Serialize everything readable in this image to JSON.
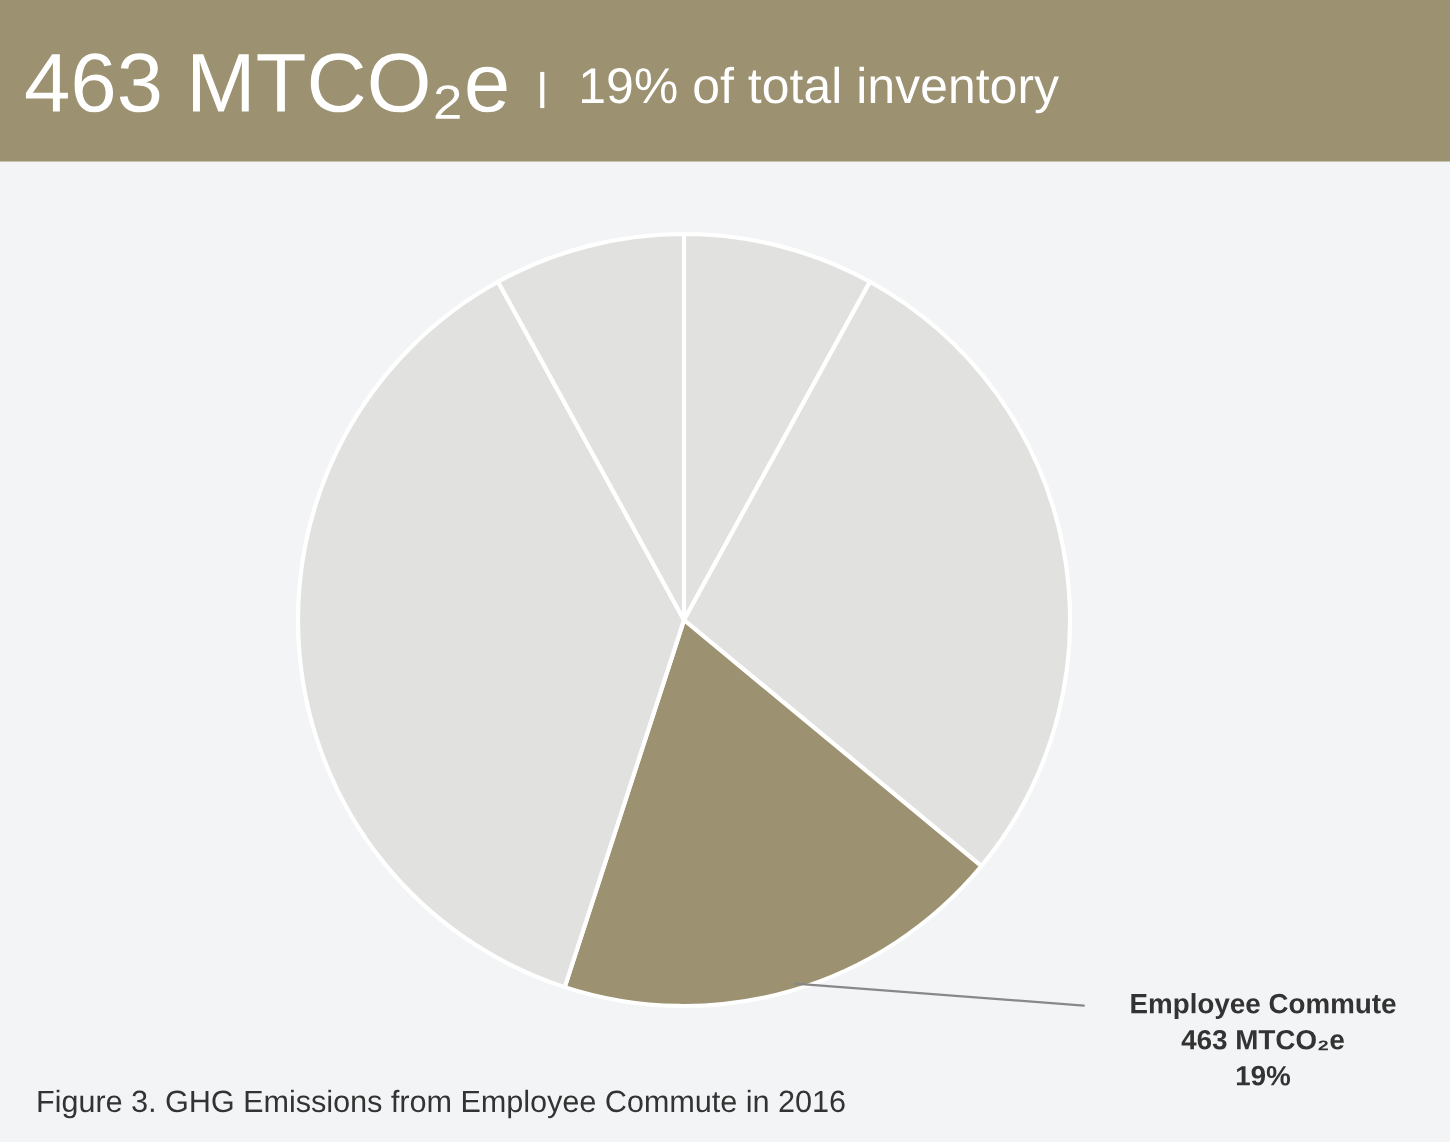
{
  "chart_data": {
    "type": "pie",
    "title": "463 MTCO₂e",
    "subtitle": "19% of total inventory",
    "categories": [
      null,
      null,
      "Employee Commute",
      null,
      null
    ],
    "values": [
      8,
      28,
      19,
      37,
      8
    ],
    "colors": [
      "#e1e1df",
      "#e1e1df",
      "#9c9170",
      "#e1e1df",
      "#e1e1df"
    ],
    "value_labels": [
      null,
      null,
      "463 MTCO₂e\n19%",
      null,
      null
    ],
    "annotations": [
      "Figure 3. GHG Emissions from Employee Commute in 2016"
    ]
  }
}
